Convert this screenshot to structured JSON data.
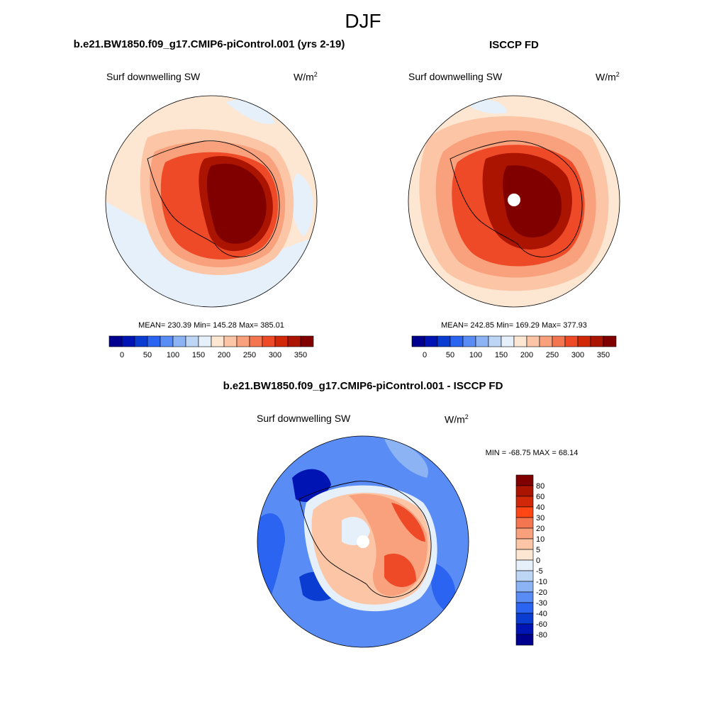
{
  "season": "DJF",
  "panels": [
    {
      "title": "b.e21.BW1850.f09_g17.CMIP6-piControl.001 (yrs 2-19)",
      "variable": "Surf downwelling SW",
      "units": "W/m",
      "units_exp": "2",
      "stats": "MEAN= 230.39  Min= 145.28  Max= 385.01",
      "colorbar": {
        "colors": [
          "#00008f",
          "#0014b4",
          "#0a3cd2",
          "#2a64f0",
          "#5a8cf5",
          "#8cb4f5",
          "#bed6f6",
          "#e6f0fa",
          "#fde6d2",
          "#fcc6a6",
          "#f9a07c",
          "#f47650",
          "#ee4a28",
          "#d2280a",
          "#aa1400",
          "#800000"
        ],
        "tick_labels": [
          "0",
          "50",
          "100",
          "150",
          "200",
          "250",
          "300",
          "350"
        ]
      }
    },
    {
      "title": "ISCCP FD",
      "variable": "Surf downwelling SW",
      "units": "W/m",
      "units_exp": "2",
      "stats": "MEAN= 242.85  Min= 169.29  Max= 377.93",
      "colorbar": {
        "colors": [
          "#00008f",
          "#0014b4",
          "#0a3cd2",
          "#2a64f0",
          "#5a8cf5",
          "#8cb4f5",
          "#bed6f6",
          "#e6f0fa",
          "#fde6d2",
          "#fcc6a6",
          "#f9a07c",
          "#f47650",
          "#ee4a28",
          "#d2280a",
          "#aa1400",
          "#800000"
        ],
        "tick_labels": [
          "0",
          "50",
          "100",
          "150",
          "200",
          "250",
          "300",
          "350"
        ]
      }
    },
    {
      "title": "b.e21.BW1850.f09_g17.CMIP6-piControl.001 - ISCCP FD",
      "variable": "Surf downwelling SW",
      "units": "W/m",
      "units_exp": "2",
      "stats": "MIN = -68.75 MAX =  68.14",
      "colorbar": {
        "colors": [
          "#800000",
          "#aa1400",
          "#d2280a",
          "#ff4614",
          "#f47650",
          "#f9a07c",
          "#fcc6a6",
          "#fde6d2",
          "#e6f0fa",
          "#bed6f6",
          "#8cb4f5",
          "#5a8cf5",
          "#2a64f0",
          "#0a3cd2",
          "#0014b4",
          "#00008f"
        ],
        "tick_labels": [
          "80",
          "60",
          "40",
          "30",
          "20",
          "10",
          "5",
          "0",
          "-5",
          "-10",
          "-20",
          "-30",
          "-40",
          "-60",
          "-80"
        ]
      }
    }
  ]
}
